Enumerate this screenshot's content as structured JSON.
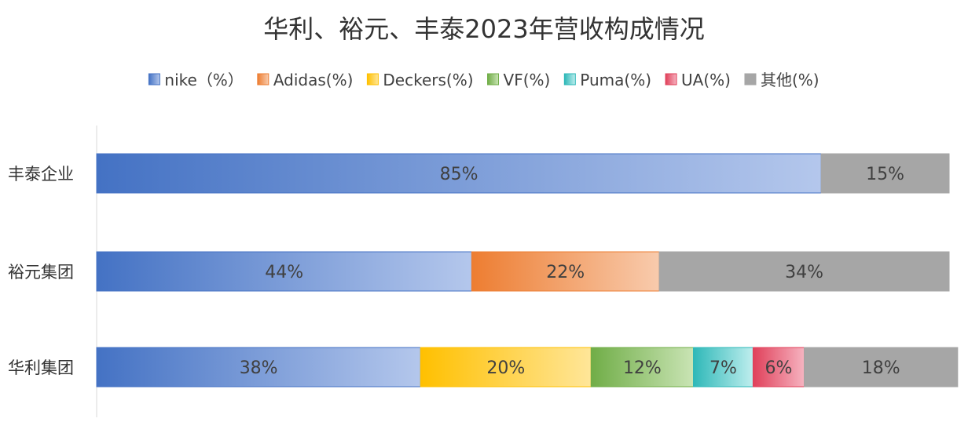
{
  "chart_data": {
    "type": "bar",
    "orientation": "horizontal",
    "stacked": true,
    "title": "华利、裕元、丰泰2023年营收构成情况",
    "legend_position": "top",
    "grid": false,
    "xlim": [
      0,
      100
    ],
    "categories": [
      "丰泰企业",
      "裕元集团",
      "华利集团"
    ],
    "series": [
      {
        "name": "nike（%）",
        "color": "#4472c4",
        "color_light": "#b4c7ec",
        "values": [
          85,
          44,
          38
        ]
      },
      {
        "name": "Adidas(%)",
        "color": "#ed7d31",
        "color_light": "#f8cbad",
        "values": [
          0,
          22,
          0
        ]
      },
      {
        "name": "Deckers(%)",
        "color": "#ffc000",
        "color_light": "#ffe699",
        "values": [
          0,
          0,
          20
        ]
      },
      {
        "name": "VF(%)",
        "color": "#70ad47",
        "color_light": "#c9e4b4",
        "values": [
          0,
          0,
          12
        ]
      },
      {
        "name": "Puma(%)",
        "color": "#2eb8b8",
        "color_light": "#bfeeee",
        "values": [
          0,
          0,
          7
        ]
      },
      {
        "name": "UA(%)",
        "color": "#e0405a",
        "color_light": "#f6b3c0",
        "values": [
          0,
          0,
          6
        ]
      },
      {
        "name": "其他(%)",
        "color": "#a6a6a6",
        "color_light": "#a6a6a6",
        "values": [
          15,
          34,
          18
        ]
      }
    ],
    "data_labels": [
      [
        "85%",
        "",
        "",
        "",
        "",
        "",
        "15%"
      ],
      [
        "44%",
        "22%",
        "",
        "",
        "",
        "",
        "34%"
      ],
      [
        "38%",
        "",
        "20%",
        "12%",
        "7%",
        "6%",
        "18%"
      ]
    ]
  }
}
